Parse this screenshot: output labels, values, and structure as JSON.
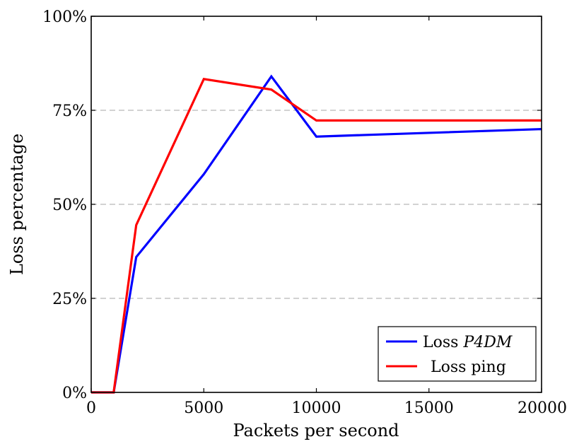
{
  "chart_data": {
    "type": "line",
    "title": "",
    "xlabel": "Packets per second",
    "ylabel": "Loss percentage",
    "xlim": [
      0,
      20000
    ],
    "ylim": [
      0,
      100
    ],
    "x_ticks": [
      0,
      5000,
      10000,
      15000,
      20000
    ],
    "x_tick_labels": [
      "0",
      "5000",
      "10000",
      "15000",
      "20000"
    ],
    "y_ticks": [
      0,
      25,
      50,
      75,
      100
    ],
    "y_tick_labels": [
      "0%",
      "25%",
      "50%",
      "75%",
      "100%"
    ],
    "grid": "horizontal dashed",
    "legend_position": "bottom-right",
    "series": [
      {
        "name": "P4DM",
        "legend_prefix": "Loss",
        "legend_italic": "P4DM",
        "color": "#0000ff",
        "x": [
          0,
          1000,
          2000,
          5000,
          8000,
          10000,
          20000
        ],
        "y": [
          0,
          0,
          36,
          58,
          84,
          68,
          70
        ]
      },
      {
        "name": "Loss ping",
        "legend_prefix": "Loss ping",
        "legend_italic": "",
        "color": "#ff0000",
        "x": [
          0,
          1000,
          2000,
          5000,
          8000,
          10000,
          20000
        ],
        "y": [
          0,
          0,
          44.5,
          83.3,
          80.5,
          72.3,
          72.3
        ]
      }
    ]
  }
}
